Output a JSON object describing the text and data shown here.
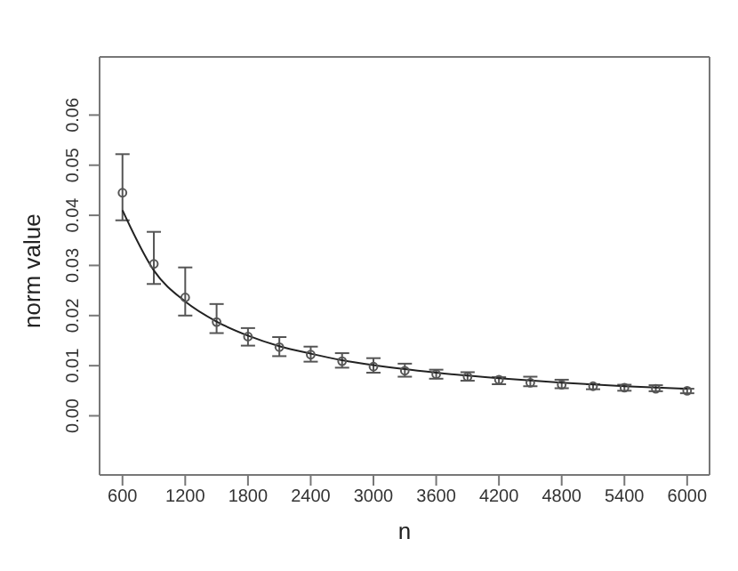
{
  "chart_data": {
    "type": "scatter",
    "xlabel": "n",
    "ylabel": "norm value",
    "xlim": [
      381,
      6214
    ],
    "xticks": [
      600,
      1200,
      1800,
      2400,
      3000,
      3600,
      4200,
      4800,
      5400,
      6000
    ],
    "ylim": [
      -0.0118,
      0.0716
    ],
    "yticks": [
      {
        "value": 0,
        "label": "0.00"
      },
      {
        "value": 0.01,
        "label": "0.01"
      },
      {
        "value": 0.02,
        "label": "0.02"
      },
      {
        "value": 0.03,
        "label": "0.03"
      },
      {
        "value": 0.04,
        "label": "0.04"
      },
      {
        "value": 0.05,
        "label": "0.05"
      },
      {
        "value": 0.06,
        "label": "0.06"
      }
    ],
    "grid": false,
    "marker": "circle",
    "series": [
      {
        "color": "#555555",
        "x": [
          600,
          900,
          1200,
          1500,
          1800,
          2100,
          2400,
          2700,
          3000,
          3300,
          3600,
          3900,
          4200,
          4500,
          4800,
          5100,
          5400,
          5700,
          6000
        ],
        "values": [
          0.0445,
          0.0303,
          0.0236,
          0.0187,
          0.0158,
          0.0137,
          0.0122,
          0.0109,
          0.0098,
          0.009,
          0.0083,
          0.0078,
          0.0072,
          0.0066,
          0.0062,
          0.0059,
          0.0056,
          0.0054,
          0.005
        ],
        "errors": [
          [
            0.039,
            0.0522
          ],
          [
            0.0263,
            0.0367
          ],
          [
            0.02,
            0.0296
          ],
          [
            0.0165,
            0.0223
          ],
          [
            0.014,
            0.0175
          ],
          [
            0.0119,
            0.0157
          ],
          [
            0.0108,
            0.0138
          ],
          [
            0.0096,
            0.0125
          ],
          [
            0.0086,
            0.0115
          ],
          [
            0.0078,
            0.0104
          ],
          [
            0.0074,
            0.0092
          ],
          [
            0.007,
            0.0087
          ],
          [
            0.0063,
            0.0077
          ],
          [
            0.0059,
            0.0078
          ],
          [
            0.0055,
            0.0072
          ],
          [
            0.0053,
            0.0063
          ],
          [
            0.005,
            0.0062
          ],
          [
            0.0049,
            0.0061
          ],
          [
            0.0045,
            0.0054
          ]
        ]
      },
      {
        "type": "line",
        "color": "#222222",
        "marker": "none",
        "x": [
          600,
          900,
          1200,
          1500,
          1800,
          2100,
          2400,
          2700,
          3000,
          3600,
          4200,
          4800,
          5400,
          6000
        ],
        "values": [
          0.041,
          0.029,
          0.0228,
          0.0188,
          0.016,
          0.0139,
          0.0124,
          0.0111,
          0.0101,
          0.0086,
          0.0075,
          0.0066,
          0.0059,
          0.0054
        ]
      }
    ]
  }
}
